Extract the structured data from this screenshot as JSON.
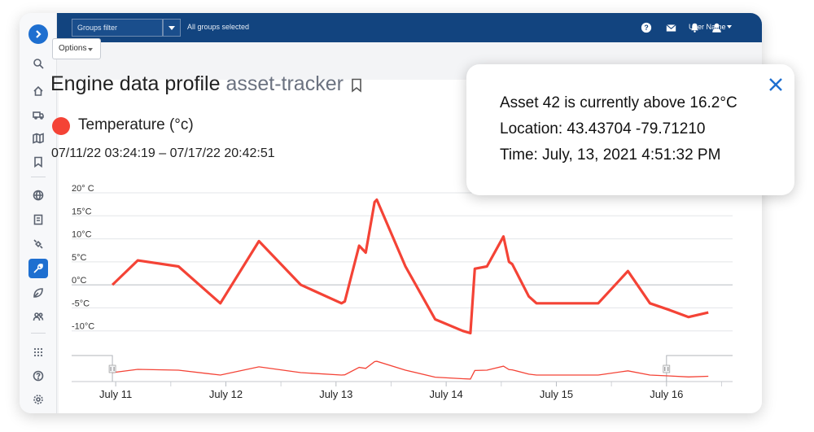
{
  "topbar": {
    "groups_filter_label": "Groups filter",
    "groups_status": "All groups selected",
    "user_name": "User Name",
    "icons": [
      "help-icon",
      "mail-icon",
      "bell-icon",
      "user-icon"
    ]
  },
  "sidebar": {
    "items": [
      "expand-icon",
      "search-icon",
      "home-icon",
      "truck-icon",
      "map-icon",
      "bookmark-icon",
      "globe-icon",
      "report-icon",
      "satellite-icon",
      "wrench-icon",
      "leaf-icon",
      "people-icon",
      "apps-icon",
      "help-icon",
      "settings-icon"
    ],
    "active": "wrench-icon",
    "accent": "#1e6fd0"
  },
  "toolbar": {
    "options_label": "Options"
  },
  "page": {
    "title": "Engine data profile",
    "subtitle": "asset-tracker"
  },
  "metric": {
    "name": "Temperature (°c)",
    "color": "#f44336",
    "range": "07/11/22 03:24:19 – 07/17/22 20:42:51"
  },
  "popup": {
    "line1": "Asset 42 is currently above 16.2°C",
    "line2": "Location: 43.43704  -79.71210",
    "line3": "Time: July, 13, 2021 4:51:32 PM"
  },
  "chart_data": {
    "type": "line",
    "title": "",
    "xlabel": "",
    "ylabel": "",
    "y_tick_labels": [
      "20° C",
      "15°C",
      "10°C",
      "5°C",
      "0°C",
      "-5°C",
      "-10°C"
    ],
    "y_ticks": [
      20,
      15,
      10,
      5,
      0,
      -5,
      -10
    ],
    "ylim": [
      -12,
      20
    ],
    "x_tick_labels": [
      "July 11",
      "July 12",
      "July 13",
      "July 14",
      "July 15",
      "July 16"
    ],
    "x_ticks": [
      11,
      12,
      13,
      14,
      15,
      16
    ],
    "xlim": [
      10.6,
      16.6
    ],
    "grid": true,
    "series": [
      {
        "color": "#f44336",
        "x": [
          10.97,
          11.2,
          11.57,
          11.95,
          12.3,
          12.68,
          13.05,
          13.08,
          13.21,
          13.27,
          13.35,
          13.37,
          13.63,
          13.9,
          14.15,
          14.22,
          14.26,
          14.37,
          14.52,
          14.57,
          14.6,
          14.75,
          14.82,
          15.05,
          15.38,
          15.65,
          15.85,
          16.03,
          16.2,
          16.38
        ],
        "y": [
          0,
          5.3,
          4.0,
          -4.0,
          9.5,
          0,
          -4.0,
          -3.6,
          8.5,
          7.0,
          18.0,
          18.5,
          4.0,
          -7.5,
          -10.0,
          -10.5,
          3.5,
          4.0,
          10.5,
          5.0,
          4.5,
          -2.5,
          -4.0,
          -4.0,
          -4.0,
          3.0,
          -4.0,
          -5.5,
          -7.0,
          -6.0
        ]
      }
    ],
    "navigator": {
      "selection": [
        "July 11",
        "July 16"
      ]
    }
  }
}
